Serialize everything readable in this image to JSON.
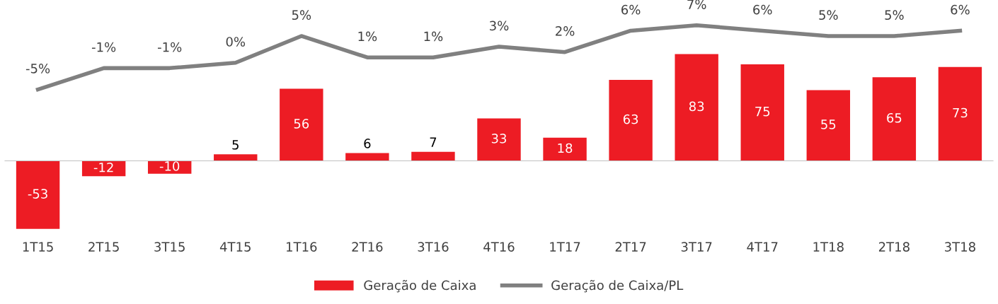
{
  "chart_data": {
    "type": "bar",
    "categories": [
      "1T15",
      "2T15",
      "3T15",
      "4T15",
      "1T16",
      "2T16",
      "3T16",
      "4T16",
      "1T17",
      "2T17",
      "3T17",
      "4T17",
      "1T18",
      "2T18",
      "3T18"
    ],
    "series": [
      {
        "name": "Geração de Caixa",
        "color": "#ed1c24",
        "values": [
          -53,
          -12,
          -10,
          5,
          56,
          6,
          7,
          33,
          18,
          63,
          83,
          75,
          55,
          65,
          73
        ]
      },
      {
        "name": "Geração de Caixa/PL",
        "type": "line",
        "axis": "y2",
        "color": "#808080",
        "values": [
          -5,
          -1,
          -1,
          0,
          5,
          1,
          1,
          3,
          2,
          6,
          7,
          6,
          5,
          5,
          6
        ],
        "value_labels": [
          "-5%",
          "-1%",
          "-1%",
          "0%",
          "5%",
          "1%",
          "1%",
          "3%",
          "2%",
          "6%",
          "7%",
          "6%",
          "5%",
          "5%",
          "6%"
        ]
      }
    ],
    "data_labels": true,
    "tick_labels": "x",
    "grid": false,
    "legend": "bottom",
    "marker": "none",
    "line_style": "solid"
  }
}
